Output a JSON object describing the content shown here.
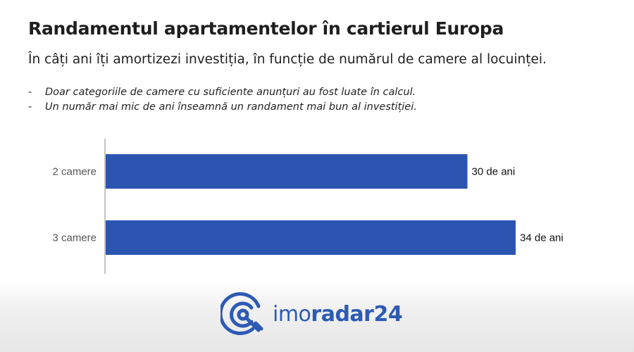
{
  "header": {
    "title": "Randamentul apartamentelor în cartierul Europa",
    "subtitle": "În câți ani îți amortizezi investiția, în funcție de numărul de camere al locuinței."
  },
  "notes": [
    {
      "dash": "-",
      "text": "Doar categoriile de camere cu suficiente anunțuri au fost luate în calcul."
    },
    {
      "dash": "-",
      "text": "Un număr mai mic de ani înseamnă un randament mai bun al investiției."
    }
  ],
  "chart_data": {
    "type": "bar",
    "orientation": "horizontal",
    "categories": [
      "2 camere",
      "3 camere"
    ],
    "values": [
      30,
      34
    ],
    "data_labels": [
      "30 de ani",
      "34 de ani"
    ],
    "xlim": [
      0,
      34
    ],
    "grid": false,
    "bar_color": "#2b55b0"
  },
  "brand": {
    "name_light": "imo",
    "name_bold": "radar24",
    "icon": "radar-logo-icon",
    "color": "#2d5ab3"
  }
}
